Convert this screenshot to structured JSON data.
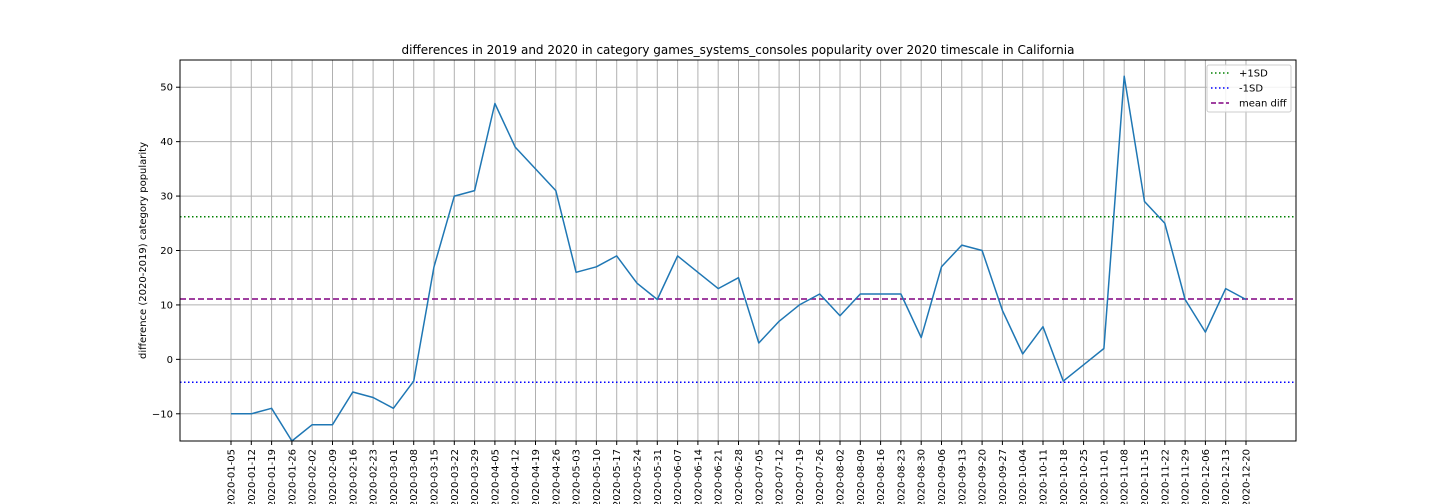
{
  "chart_data": {
    "type": "line",
    "title": "differences in 2019 and 2020 in category games_systems_consoles popularity over 2020 timescale in California",
    "xlabel": "",
    "ylabel": "difference (2020-2019) category popularity",
    "ylim": [
      -15,
      55
    ],
    "yticks": [
      -10,
      0,
      10,
      20,
      30,
      40,
      50
    ],
    "grid": true,
    "legend_position": "top-right",
    "x": [
      "2020-01-05",
      "2020-01-12",
      "2020-01-19",
      "2020-01-26",
      "2020-02-02",
      "2020-02-09",
      "2020-02-16",
      "2020-02-23",
      "2020-03-01",
      "2020-03-08",
      "2020-03-15",
      "2020-03-22",
      "2020-03-29",
      "2020-04-05",
      "2020-04-12",
      "2020-04-19",
      "2020-04-26",
      "2020-05-03",
      "2020-05-10",
      "2020-05-17",
      "2020-05-24",
      "2020-05-31",
      "2020-06-07",
      "2020-06-14",
      "2020-06-21",
      "2020-06-28",
      "2020-07-05",
      "2020-07-12",
      "2020-07-19",
      "2020-07-26",
      "2020-08-02",
      "2020-08-09",
      "2020-08-16",
      "2020-08-23",
      "2020-08-30",
      "2020-09-06",
      "2020-09-13",
      "2020-09-20",
      "2020-09-27",
      "2020-10-04",
      "2020-10-11",
      "2020-10-18",
      "2020-10-25",
      "2020-11-01",
      "2020-11-08",
      "2020-11-15",
      "2020-11-22",
      "2020-11-29",
      "2020-12-06",
      "2020-12-13",
      "2020-12-20"
    ],
    "series": [
      {
        "name": "",
        "color": "#1f77b4",
        "values": [
          -10,
          -10,
          -9,
          -15,
          -12,
          -12,
          -6,
          -7,
          -9,
          -4,
          17,
          30,
          31,
          47,
          39,
          35,
          31,
          16,
          17,
          19,
          14,
          11,
          19,
          16,
          13,
          15,
          3,
          7,
          10,
          12,
          8,
          12,
          12,
          12,
          4,
          17,
          21,
          20,
          9,
          1,
          6,
          -4,
          -1,
          2,
          52,
          29,
          25,
          11,
          5,
          13,
          11
        ]
      }
    ],
    "reference_lines": [
      {
        "name": "+1SD",
        "value": 26.2,
        "color": "#008000",
        "style": "dotted"
      },
      {
        "name": "-1SD",
        "value": -4.2,
        "color": "#0000ff",
        "style": "dotted"
      },
      {
        "name": "mean diff",
        "value": 11.1,
        "color": "#800080",
        "style": "dashed"
      }
    ]
  }
}
